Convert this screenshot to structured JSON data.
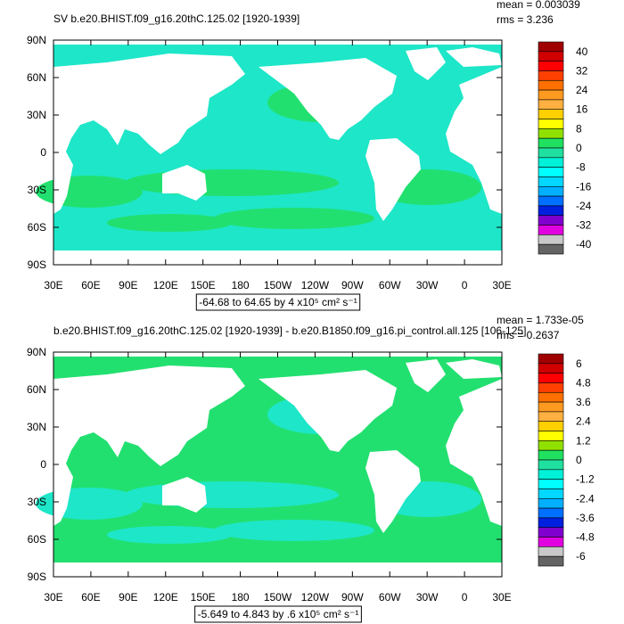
{
  "panels": [
    {
      "title": "SV b.e20.BHIST.f09_g16.20thC.125.02 [1920-1939]",
      "stats": [
        "mean = 0.003039",
        "rms = 3.236"
      ],
      "range_label": "-64.68 to 64.65 by 4 x10⁵ cm² s⁻¹",
      "lat_labels": [
        "90N",
        "60N",
        "30N",
        "0",
        "30S",
        "60S",
        "90S"
      ],
      "lon_labels": [
        "30E",
        "60E",
        "90E",
        "120E",
        "150E",
        "180",
        "150W",
        "120W",
        "90W",
        "60W",
        "30W",
        "0",
        "30E"
      ],
      "ocean_color": "#1ee6c8",
      "patch_color": "#22e070",
      "colorbar": {
        "levels": [
          40,
          32,
          24,
          16,
          8,
          0,
          -8,
          -16,
          -24,
          -32,
          -40
        ],
        "colors": [
          "#a00000",
          "#d00000",
          "#ff0000",
          "#ff4000",
          "#ff7000",
          "#ff9a20",
          "#ffb040",
          "#ffd000",
          "#ffff00",
          "#90e000",
          "#20e060",
          "#20e0a0",
          "#00f0d8",
          "#00ffff",
          "#00d8ff",
          "#00b0ff",
          "#0070ff",
          "#0020e0",
          "#8000d0",
          "#e000e0",
          "#c8c8c8",
          "#646464"
        ]
      }
    },
    {
      "title": "b.e20.BHIST.f09_g16.20thC.125.02 [1920-1939] - b.e20.B1850.f09_g16.pi_control.all.125 [106-125]",
      "stats": [
        "mean = 1.733e-05",
        "rms = 0.2637"
      ],
      "range_label": "-5.649 to 4.843 by .6 x10⁵ cm² s⁻¹",
      "lat_labels": [
        "90N",
        "60N",
        "30N",
        "0",
        "30S",
        "60S",
        "90S"
      ],
      "lon_labels": [
        "30E",
        "60E",
        "90E",
        "120E",
        "150E",
        "180",
        "150W",
        "120W",
        "90W",
        "60W",
        "30W",
        "0",
        "30E"
      ],
      "ocean_color": "#22e070",
      "patch_color": "#1ee6c8",
      "colorbar": {
        "levels": [
          6,
          4.8,
          3.6,
          2.4,
          1.2,
          0,
          -1.2,
          -2.4,
          -3.6,
          -4.8,
          -6
        ],
        "colors": [
          "#a00000",
          "#d00000",
          "#ff0000",
          "#ff4000",
          "#ff7000",
          "#ff9a20",
          "#ffb040",
          "#ffd000",
          "#ffff00",
          "#90e000",
          "#20e060",
          "#20e0a0",
          "#00f0d8",
          "#00ffff",
          "#00d8ff",
          "#00b0ff",
          "#0070ff",
          "#0020e0",
          "#8000d0",
          "#e000e0",
          "#c8c8c8",
          "#646464"
        ]
      }
    }
  ]
}
